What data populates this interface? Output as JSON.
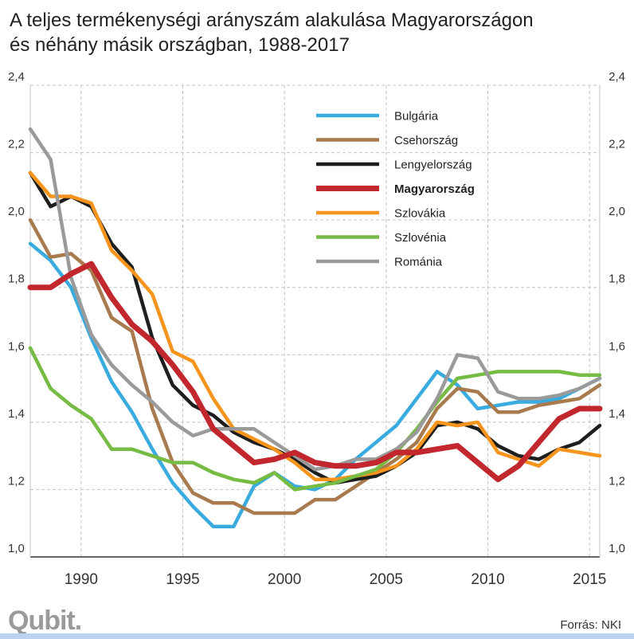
{
  "chart_data": {
    "type": "line",
    "title": "A teljes termékenységi arányszám alakulása Magyarországon és néhány másik országban, 1988-2017",
    "title_lines": [
      "A teljes termékenységi arányszám alakulása Magyarországon",
      "és néhány másik országban, 1988-2017"
    ],
    "xlabel": "",
    "ylabel": "",
    "x": [
      1987.5,
      1988.5,
      1989.5,
      1990.5,
      1991.5,
      1992.5,
      1993.5,
      1994.5,
      1995.5,
      1996.5,
      1997.5,
      1998.5,
      1999.5,
      2000.5,
      2001.5,
      2002.5,
      2003.5,
      2004.5,
      2005.5,
      2006.5,
      2007.5,
      2008.5,
      2009.5,
      2010.5,
      2011.5,
      2012.5,
      2013.5,
      2014.5,
      2015.5
    ],
    "xlim": [
      1987.5,
      2015.5
    ],
    "ylim": [
      1.0,
      2.4
    ],
    "x_ticks": [
      1990,
      1995,
      2000,
      2005,
      2010,
      2015
    ],
    "x_tick_labels": [
      "1990",
      "1995",
      "2000",
      "2005",
      "2010",
      "2015"
    ],
    "y_ticks": [
      1.0,
      1.2,
      1.4,
      1.6,
      1.8,
      2.0,
      2.2,
      2.4
    ],
    "y_tick_labels": [
      "1,0",
      "1,2",
      "1,4",
      "1,6",
      "1,8",
      "2,0",
      "2,2",
      "2,4"
    ],
    "grid": true,
    "legend_position": "top-center",
    "series": [
      {
        "name": "Bulgária",
        "color": "#3aabdf",
        "bold": false,
        "values": [
          1.93,
          1.88,
          1.8,
          1.65,
          1.52,
          1.43,
          1.32,
          1.22,
          1.15,
          1.09,
          1.09,
          1.21,
          1.25,
          1.21,
          1.2,
          1.23,
          1.29,
          1.34,
          1.39,
          1.47,
          1.55,
          1.51,
          1.44,
          1.45,
          1.46,
          1.46,
          1.47,
          1.5,
          1.53
        ]
      },
      {
        "name": "Csehország",
        "color": "#a87a4e",
        "bold": false,
        "values": [
          2.0,
          1.89,
          1.9,
          1.85,
          1.71,
          1.67,
          1.44,
          1.28,
          1.19,
          1.16,
          1.16,
          1.13,
          1.13,
          1.13,
          1.17,
          1.17,
          1.21,
          1.25,
          1.29,
          1.34,
          1.44,
          1.5,
          1.49,
          1.43,
          1.43,
          1.45,
          1.46,
          1.47,
          1.51
        ]
      },
      {
        "name": "Lengyelország",
        "color": "#1e1e1e",
        "bold": false,
        "values": [
          2.14,
          2.04,
          2.07,
          2.04,
          1.93,
          1.86,
          1.65,
          1.51,
          1.45,
          1.42,
          1.37,
          1.34,
          1.32,
          1.29,
          1.25,
          1.22,
          1.23,
          1.24,
          1.27,
          1.31,
          1.39,
          1.4,
          1.38,
          1.33,
          1.3,
          1.29,
          1.32,
          1.34,
          1.39
        ]
      },
      {
        "name": "Magyarország",
        "color": "#c1272d",
        "bold": true,
        "values": [
          1.8,
          1.8,
          1.84,
          1.87,
          1.77,
          1.69,
          1.64,
          1.57,
          1.49,
          1.38,
          1.33,
          1.28,
          1.29,
          1.31,
          1.28,
          1.27,
          1.27,
          1.28,
          1.31,
          1.31,
          1.32,
          1.33,
          1.28,
          1.23,
          1.27,
          1.34,
          1.41,
          1.44,
          1.44
        ]
      },
      {
        "name": "Szlovákia",
        "color": "#f7941d",
        "bold": false,
        "values": [
          2.14,
          2.07,
          2.07,
          2.05,
          1.91,
          1.85,
          1.78,
          1.61,
          1.58,
          1.47,
          1.38,
          1.35,
          1.32,
          1.28,
          1.23,
          1.23,
          1.24,
          1.25,
          1.27,
          1.32,
          1.4,
          1.39,
          1.4,
          1.31,
          1.29,
          1.27,
          1.32,
          1.31,
          1.3
        ]
      },
      {
        "name": "Szlovénia",
        "color": "#76bb43",
        "bold": false,
        "values": [
          1.62,
          1.5,
          1.45,
          1.41,
          1.32,
          1.32,
          1.3,
          1.28,
          1.28,
          1.25,
          1.23,
          1.22,
          1.25,
          1.2,
          1.21,
          1.22,
          1.24,
          1.26,
          1.31,
          1.38,
          1.46,
          1.53,
          1.54,
          1.55,
          1.55,
          1.55,
          1.55,
          1.54,
          1.54
        ]
      },
      {
        "name": "Románia",
        "color": "#9a9a9a",
        "bold": false,
        "values": [
          2.27,
          2.18,
          1.83,
          1.66,
          1.57,
          1.51,
          1.46,
          1.4,
          1.36,
          1.38,
          1.38,
          1.38,
          1.34,
          1.3,
          1.26,
          1.27,
          1.29,
          1.29,
          1.32,
          1.37,
          1.47,
          1.6,
          1.59,
          1.49,
          1.47,
          1.47,
          1.48,
          1.5,
          1.53
        ]
      }
    ]
  },
  "footer": {
    "logo": "Qubit.",
    "source": "Forrás: NKI"
  }
}
